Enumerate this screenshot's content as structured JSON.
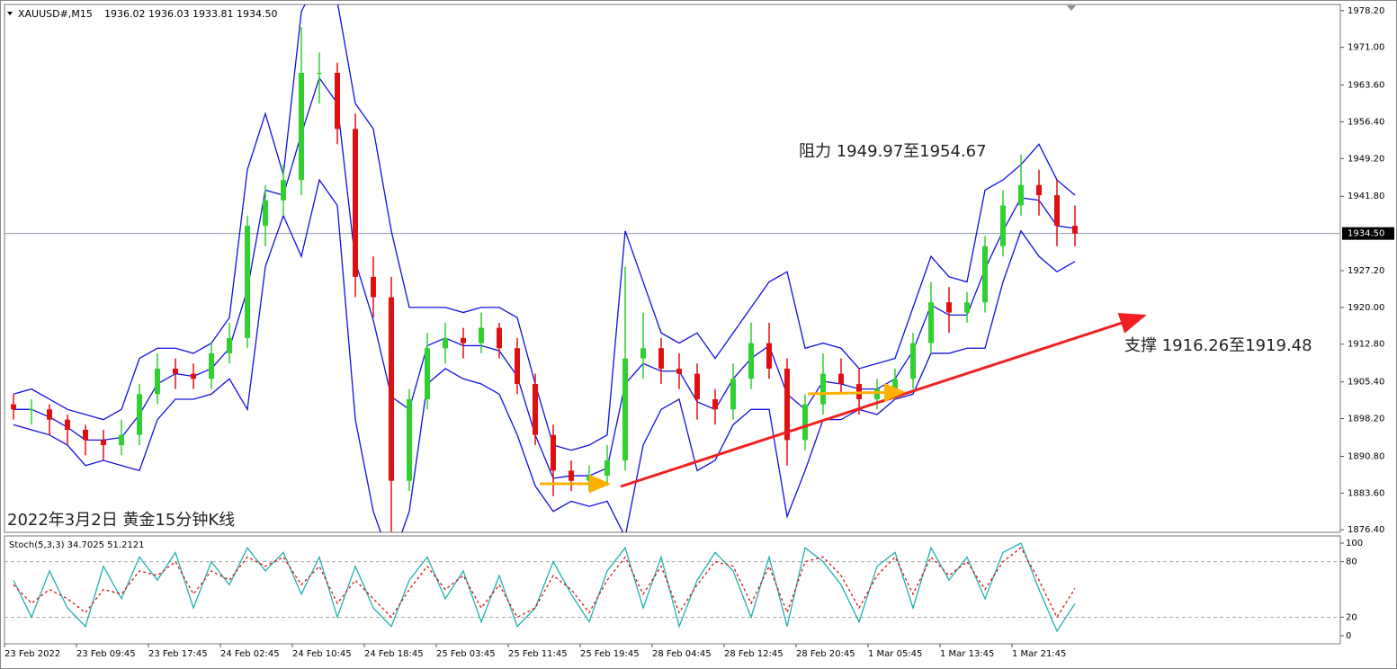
{
  "chart_data": [
    {
      "type": "candlestick",
      "symbol": "XAUUSD#,M15",
      "quote": "1936.02 1936.03 1933.81 1934.50",
      "caption": "2022年3月2日 黄金15分钟K线",
      "resistance_note": "阻力 1949.97至1954.67",
      "support_note": "支撑 1916.26至1919.48",
      "categories": [
        "23 Feb 2022",
        null,
        null,
        null,
        "23 Feb 09:45",
        null,
        null,
        null,
        "23 Feb 17:45",
        null,
        null,
        null,
        "24 Feb 02:45",
        null,
        null,
        null,
        "24 Feb 10:45",
        null,
        null,
        null,
        "24 Feb 18:45",
        null,
        null,
        null,
        "25 Feb 03:45",
        null,
        null,
        null,
        "25 Feb 11:45",
        null,
        null,
        null,
        "25 Feb 19:45",
        null,
        null,
        null,
        "28 Feb 04:45",
        null,
        null,
        null,
        "28 Feb 12:45",
        null,
        null,
        null,
        "28 Feb 20:45",
        null,
        null,
        null,
        "1 Mar 05:45",
        null,
        null,
        null,
        "1 Mar 13:45",
        null,
        null,
        null,
        "1 Mar 21:45",
        null,
        null,
        null
      ],
      "open": [
        1901,
        1900,
        1900,
        1898,
        1896,
        1894,
        1893,
        1895,
        1903,
        1908,
        1907,
        1906,
        1911,
        1914,
        1936,
        1941,
        1945,
        1966,
        1966,
        1955,
        1926,
        1922,
        1886,
        1902,
        1912,
        1914,
        1913,
        1916,
        1912,
        1905,
        1895,
        1888,
        1886,
        1887,
        1890,
        1910,
        1912,
        1908,
        1907,
        1902,
        1900,
        1906,
        1913,
        1908,
        1894,
        1901,
        1907,
        1905,
        1902,
        1904,
        1906,
        1913,
        1921,
        1919,
        1921,
        1932,
        1940,
        1944,
        1942,
        1936
      ],
      "high": [
        1903,
        1902,
        1901,
        1899,
        1897,
        1896,
        1898,
        1905,
        1911,
        1910,
        1909,
        1913,
        1917,
        1938,
        1944,
        1948,
        1975,
        1970,
        1968,
        1958,
        1930,
        1926,
        1904,
        1915,
        1917,
        1916,
        1919,
        1917,
        1914,
        1907,
        1897,
        1890,
        1889,
        1893,
        1928,
        1919,
        1914,
        1911,
        1909,
        1904,
        1909,
        1917,
        1917,
        1910,
        1903,
        1911,
        1910,
        1908,
        1906,
        1908,
        1915,
        1925,
        1924,
        1923,
        1934,
        1943,
        1950,
        1947,
        1945,
        1940
      ],
      "low": [
        1898,
        1897,
        1895,
        1893,
        1891,
        1890,
        1891,
        1893,
        1901,
        1904,
        1904,
        1904,
        1909,
        1912,
        1932,
        1938,
        1942,
        1960,
        1952,
        1922,
        1918,
        1876,
        1884,
        1900,
        1909,
        1910,
        1911,
        1910,
        1903,
        1893,
        1883,
        1884,
        1884,
        1885,
        1888,
        1906,
        1905,
        1904,
        1898,
        1897,
        1898,
        1904,
        1906,
        1889,
        1892,
        1899,
        1903,
        1899,
        1900,
        1902,
        1904,
        1911,
        1915,
        1917,
        1919,
        1930,
        1938,
        1938,
        1932,
        1932
      ],
      "close": [
        1900,
        1900,
        1898,
        1896,
        1894,
        1893,
        1895,
        1903,
        1908,
        1907,
        1906,
        1911,
        1914,
        1936,
        1941,
        1945,
        1966,
        1966,
        1955,
        1926,
        1922,
        1886,
        1902,
        1912,
        1914,
        1913,
        1916,
        1912,
        1905,
        1895,
        1888,
        1886,
        1887,
        1890,
        1910,
        1912,
        1908,
        1907,
        1902,
        1900,
        1906,
        1913,
        1908,
        1894,
        1901,
        1907,
        1905,
        1902,
        1904,
        1906,
        1913,
        1921,
        1919,
        1921,
        1932,
        1940,
        1944,
        1942,
        1936,
        1934.5
      ],
      "upper_band": [
        1903,
        1904,
        1902,
        1900,
        1899,
        1898,
        1900,
        1910,
        1912,
        1912,
        1911,
        1913,
        1918,
        1947,
        1958,
        1946,
        1978,
        1985,
        1980,
        1960,
        1955,
        1935,
        1920,
        1920,
        1920,
        1919,
        1920,
        1920,
        1918,
        1905,
        1893,
        1892,
        1893,
        1895,
        1935,
        1925,
        1915,
        1913,
        1915,
        1910,
        1915,
        1920,
        1925,
        1927,
        1912,
        1913,
        1912,
        1908,
        1909,
        1910,
        1920,
        1930,
        1926,
        1925,
        1943,
        1945,
        1948,
        1952,
        1945,
        1942
      ],
      "middle_band": [
        1900,
        1900,
        1898.5,
        1896.5,
        1894,
        1894,
        1894.5,
        1899,
        1905,
        1907,
        1906.5,
        1908,
        1912,
        1923.5,
        1943,
        1942,
        1954,
        1965,
        1960,
        1929,
        1917.5,
        1902.5,
        1900,
        1912.5,
        1914,
        1912.5,
        1912.5,
        1911.5,
        1906.5,
        1895,
        1886.5,
        1887,
        1887,
        1888.5,
        1905,
        1909,
        1907.5,
        1907.5,
        1901.5,
        1900,
        1906,
        1910,
        1912.5,
        1903,
        1900,
        1905.5,
        1905,
        1904,
        1904,
        1906,
        1911.5,
        1920.5,
        1918.5,
        1918.5,
        1927.5,
        1935,
        1941.5,
        1941,
        1936,
        1935.5
      ],
      "lower_band": [
        1897,
        1896,
        1895,
        1893,
        1889,
        1890,
        1889,
        1888,
        1898,
        1902,
        1902,
        1903,
        1906,
        1900,
        1928,
        1938,
        1930,
        1945,
        1940,
        1898,
        1880,
        1870,
        1880,
        1905,
        1908,
        1906,
        1905,
        1903,
        1895,
        1885,
        1880,
        1882,
        1881,
        1882,
        1875,
        1893,
        1900,
        1902,
        1888,
        1890,
        1897,
        1900,
        1900,
        1879,
        1888,
        1898,
        1898,
        1900,
        1899,
        1902,
        1903,
        1911,
        1911,
        1912,
        1912,
        1925,
        1935,
        1930,
        1927,
        1929
      ],
      "up_color": "#2fd02f",
      "down_color": "#e01010",
      "band_color": "#1010e0",
      "ylim": [
        1875.9,
        1979.4
      ],
      "yticks": [
        {
          "value": 1978.2,
          "label": "1978.20"
        },
        {
          "value": 1971,
          "label": "1971.00"
        },
        {
          "value": 1963.6,
          "label": "1963.60"
        },
        {
          "value": 1956.4,
          "label": "1956.40"
        },
        {
          "value": 1949.2,
          "label": "1949.20"
        },
        {
          "value": 1941.8,
          "label": "1941.80"
        },
        {
          "value": 1927.2,
          "label": "1927.20"
        },
        {
          "value": 1920,
          "label": "1920.00"
        },
        {
          "value": 1912.8,
          "label": "1912.80"
        },
        {
          "value": 1905.4,
          "label": "1905.40"
        },
        {
          "value": 1898.2,
          "label": "1898.20"
        },
        {
          "value": 1890.8,
          "label": "1890.80"
        },
        {
          "value": 1883.6,
          "label": "1883.60"
        },
        {
          "value": 1876.4,
          "label": "1876.40"
        }
      ],
      "current_price": {
        "value": 1934.5,
        "label": "1934.50"
      }
    },
    {
      "type": "line",
      "title": "Stoch(5,3,3) 34.7025 51.2121",
      "series": [
        {
          "color": "#20b0b0",
          "values": [
            60,
            20,
            70,
            30,
            10,
            75,
            40,
            85,
            60,
            90,
            30,
            80,
            55,
            95,
            70,
            90,
            45,
            85,
            20,
            75,
            30,
            10,
            60,
            85,
            40,
            70,
            15,
            65,
            10,
            30,
            80,
            45,
            15,
            70,
            95,
            30,
            85,
            10,
            60,
            90,
            70,
            20,
            85,
            10,
            95,
            80,
            55,
            15,
            75,
            90,
            30,
            95,
            60,
            85,
            40,
            90,
            100,
            50,
            5,
            34.7
          ]
        },
        {
          "color": "#e01010",
          "dashed": true,
          "values": [
            55,
            35,
            50,
            40,
            25,
            50,
            45,
            70,
            65,
            80,
            45,
            70,
            60,
            85,
            75,
            85,
            55,
            75,
            35,
            60,
            40,
            20,
            50,
            75,
            50,
            65,
            30,
            55,
            20,
            30,
            65,
            50,
            25,
            60,
            85,
            45,
            75,
            25,
            55,
            80,
            75,
            35,
            75,
            25,
            80,
            85,
            65,
            30,
            65,
            85,
            45,
            85,
            65,
            80,
            50,
            80,
            95,
            60,
            20,
            51.2
          ]
        }
      ],
      "ylim": [
        -8.7,
        107.8
      ],
      "yticks": [
        100,
        80,
        20,
        0
      ],
      "dashed_levels": [
        80,
        20
      ]
    }
  ]
}
